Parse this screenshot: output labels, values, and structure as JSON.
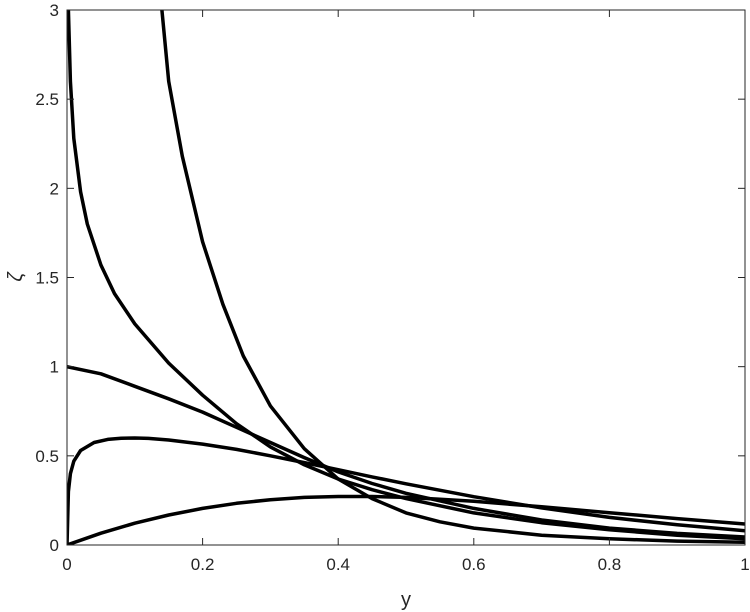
{
  "chart_data": {
    "type": "line",
    "title": "",
    "xlabel": "y",
    "ylabel": "ζ",
    "xlim": [
      0,
      1
    ],
    "ylim": [
      0,
      3
    ],
    "xticks": [
      0,
      0.2,
      0.4,
      0.6,
      0.8,
      1
    ],
    "xtick_labels": [
      "0",
      "0.2",
      "0.4",
      "0.6",
      "0.8",
      "1"
    ],
    "yticks": [
      0,
      0.5,
      1,
      1.5,
      2,
      2.5,
      3
    ],
    "ytick_labels": [
      "0",
      "0.5",
      "1",
      "1.5",
      "2",
      "2.5",
      "3"
    ],
    "grid": false,
    "line_color": "#000000",
    "series": [
      {
        "x": [
          0,
          0.05,
          0.1,
          0.15,
          0.2,
          0.25,
          0.3,
          0.35,
          0.4,
          0.45,
          0.5,
          0.55,
          0.6,
          0.7,
          0.8,
          0.9,
          1.0
        ],
        "y": [
          0,
          0.066,
          0.122,
          0.168,
          0.205,
          0.234,
          0.254,
          0.267,
          0.272,
          0.272,
          0.267,
          0.257,
          0.245,
          0.214,
          0.181,
          0.148,
          0.118
        ]
      },
      {
        "x": [
          0,
          0.002,
          0.005,
          0.01,
          0.02,
          0.04,
          0.06,
          0.08,
          0.1,
          0.12,
          0.15,
          0.2,
          0.25,
          0.3,
          0.35,
          0.4,
          0.45,
          0.5,
          0.6,
          0.7,
          0.8,
          0.9,
          1.0
        ],
        "y": [
          0,
          0.3,
          0.4,
          0.47,
          0.53,
          0.575,
          0.592,
          0.599,
          0.6,
          0.598,
          0.589,
          0.566,
          0.536,
          0.5,
          0.462,
          0.422,
          0.382,
          0.343,
          0.271,
          0.208,
          0.155,
          0.113,
          0.08
        ]
      },
      {
        "x": [
          0,
          0.05,
          0.1,
          0.15,
          0.2,
          0.25,
          0.3,
          0.35,
          0.4,
          0.45,
          0.5,
          0.6,
          0.7,
          0.8,
          0.9,
          1.0
        ],
        "y": [
          1.0,
          0.96,
          0.89,
          0.82,
          0.745,
          0.66,
          0.575,
          0.49,
          0.41,
          0.345,
          0.29,
          0.205,
          0.14,
          0.095,
          0.065,
          0.045
        ]
      },
      {
        "x": [
          0.002,
          0.005,
          0.01,
          0.02,
          0.03,
          0.05,
          0.07,
          0.1,
          0.15,
          0.2,
          0.25,
          0.3,
          0.35,
          0.4,
          0.45,
          0.5,
          0.6,
          0.7,
          0.8,
          0.9,
          1.0
        ],
        "y": [
          3.0,
          2.6,
          2.28,
          1.98,
          1.8,
          1.57,
          1.41,
          1.24,
          1.02,
          0.84,
          0.68,
          0.55,
          0.45,
          0.37,
          0.31,
          0.26,
          0.18,
          0.125,
          0.085,
          0.055,
          0.035
        ]
      },
      {
        "x": [
          0.14,
          0.15,
          0.17,
          0.2,
          0.23,
          0.26,
          0.3,
          0.35,
          0.4,
          0.45,
          0.5,
          0.55,
          0.6,
          0.7,
          0.8,
          0.9,
          1.0
        ],
        "y": [
          3.0,
          2.6,
          2.18,
          1.7,
          1.35,
          1.06,
          0.78,
          0.54,
          0.37,
          0.26,
          0.18,
          0.13,
          0.095,
          0.055,
          0.035,
          0.022,
          0.015
        ]
      }
    ]
  }
}
